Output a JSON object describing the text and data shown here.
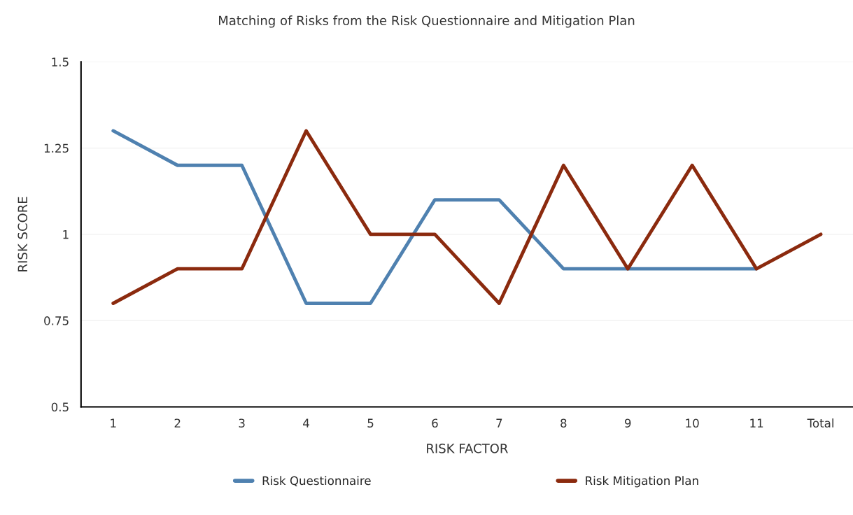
{
  "chart_data": {
    "type": "line",
    "title": "Matching of Risks from the Risk Questionnaire and Mitigation Plan",
    "xlabel": "RISK FACTOR",
    "ylabel": "RISK SCORE",
    "categories": [
      "1",
      "2",
      "3",
      "4",
      "5",
      "6",
      "7",
      "8",
      "9",
      "10",
      "11",
      "Total"
    ],
    "series": [
      {
        "name": "Risk Questionnaire",
        "color": "#4f81b0",
        "values": [
          1.3,
          1.2,
          1.2,
          0.8,
          0.8,
          1.1,
          1.1,
          0.9,
          0.9,
          0.9,
          0.9,
          null
        ]
      },
      {
        "name": "Risk Mitigation Plan",
        "color": "#8b2a0e",
        "values": [
          0.8,
          0.9,
          0.9,
          1.3,
          1.0,
          1.0,
          0.8,
          1.2,
          0.9,
          1.2,
          0.9,
          1.0
        ]
      }
    ],
    "ylim": [
      0.5,
      1.5
    ],
    "yticks": [
      0.5,
      0.75,
      1,
      1.25,
      1.5
    ],
    "grid": "y",
    "legend": "bottom",
    "marker": "none",
    "line_style": "solid"
  }
}
